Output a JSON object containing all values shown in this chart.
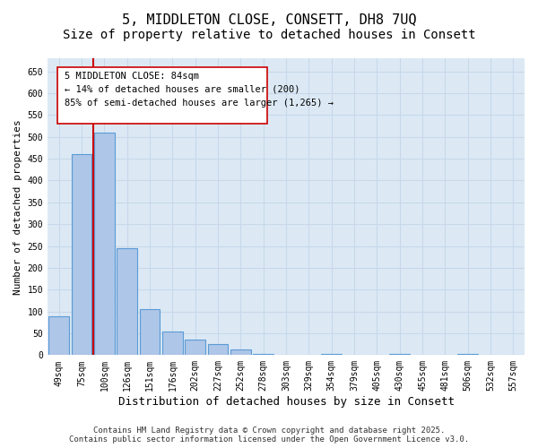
{
  "title": "5, MIDDLETON CLOSE, CONSETT, DH8 7UQ",
  "subtitle": "Size of property relative to detached houses in Consett",
  "xlabel": "Distribution of detached houses by size in Consett",
  "ylabel": "Number of detached properties",
  "categories": [
    "49sqm",
    "75sqm",
    "100sqm",
    "126sqm",
    "151sqm",
    "176sqm",
    "202sqm",
    "227sqm",
    "252sqm",
    "278sqm",
    "303sqm",
    "329sqm",
    "354sqm",
    "379sqm",
    "405sqm",
    "430sqm",
    "455sqm",
    "481sqm",
    "506sqm",
    "532sqm",
    "557sqm"
  ],
  "values": [
    88,
    460,
    510,
    245,
    105,
    55,
    35,
    25,
    12,
    3,
    0,
    0,
    3,
    0,
    0,
    3,
    0,
    0,
    3,
    0,
    0
  ],
  "bar_color": "#aec6e8",
  "bar_edge_color": "#5b9bd5",
  "bar_edge_width": 0.8,
  "grid_color": "#c8d8ea",
  "background_color": "#dce9f5",
  "vline_color": "#cc0000",
  "vline_x": 1.5,
  "annotation_box_text": "5 MIDDLETON CLOSE: 84sqm\n← 14% of detached houses are smaller (200)\n85% of semi-detached houses are larger (1,265) →",
  "annotation_fontsize": 7.5,
  "ylim": [
    0,
    680
  ],
  "yticks": [
    0,
    50,
    100,
    150,
    200,
    250,
    300,
    350,
    400,
    450,
    500,
    550,
    600,
    650
  ],
  "footer_text": "Contains HM Land Registry data © Crown copyright and database right 2025.\nContains public sector information licensed under the Open Government Licence v3.0.",
  "title_fontsize": 11,
  "subtitle_fontsize": 10,
  "xlabel_fontsize": 9,
  "ylabel_fontsize": 8,
  "tick_fontsize": 7,
  "footer_fontsize": 6.5
}
